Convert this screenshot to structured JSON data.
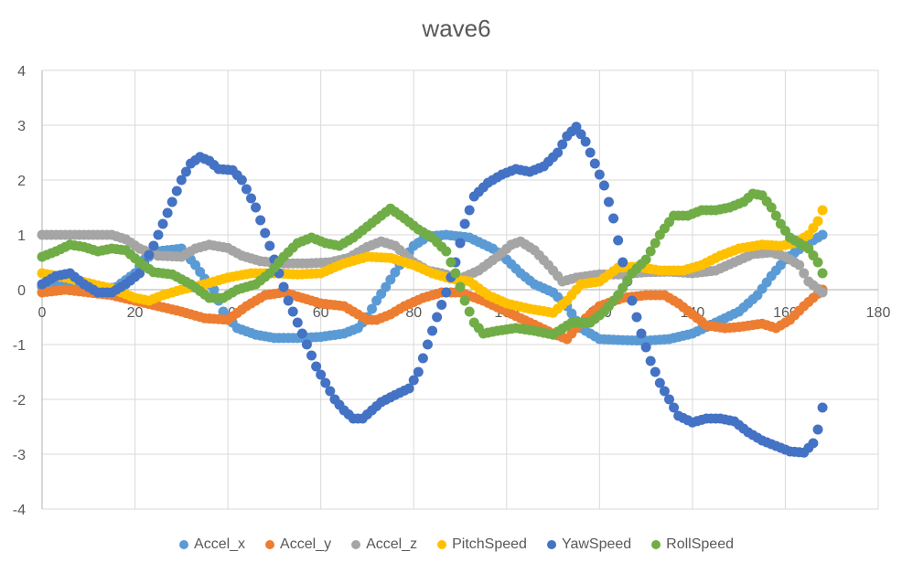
{
  "chart_data": {
    "type": "scatter",
    "title": "wave6",
    "xlabel": "",
    "ylabel": "",
    "xlim": [
      0,
      180
    ],
    "ylim": [
      -4,
      4
    ],
    "x_ticks": [
      0,
      20,
      40,
      60,
      80,
      100,
      120,
      140,
      160,
      180
    ],
    "y_ticks": [
      -4,
      -3,
      -2,
      -1,
      0,
      1,
      2,
      3,
      4
    ],
    "grid": true,
    "legend_position": "bottom",
    "series": [
      {
        "name": "Accel_x",
        "color": "#5B9BD5",
        "points": [
          [
            0,
            0.05
          ],
          [
            5,
            0.15
          ],
          [
            10,
            0.1
          ],
          [
            13,
            0.0
          ],
          [
            16,
            0.05
          ],
          [
            20,
            0.3
          ],
          [
            22,
            0.55
          ],
          [
            25,
            0.7
          ],
          [
            30,
            0.75
          ],
          [
            33,
            0.45
          ],
          [
            35,
            0.2
          ],
          [
            37,
            0.0
          ],
          [
            39,
            -0.4
          ],
          [
            42,
            -0.7
          ],
          [
            46,
            -0.82
          ],
          [
            50,
            -0.88
          ],
          [
            55,
            -0.88
          ],
          [
            60,
            -0.86
          ],
          [
            65,
            -0.8
          ],
          [
            68,
            -0.7
          ],
          [
            70,
            -0.5
          ],
          [
            72,
            -0.2
          ],
          [
            74,
            0.05
          ],
          [
            77,
            0.45
          ],
          [
            80,
            0.8
          ],
          [
            83,
            0.97
          ],
          [
            87,
            1.0
          ],
          [
            92,
            0.95
          ],
          [
            97,
            0.75
          ],
          [
            100,
            0.55
          ],
          [
            103,
            0.3
          ],
          [
            106,
            0.1
          ],
          [
            110,
            -0.05
          ],
          [
            113,
            -0.3
          ],
          [
            116,
            -0.7
          ],
          [
            120,
            -0.9
          ],
          [
            125,
            -0.92
          ],
          [
            130,
            -0.93
          ],
          [
            135,
            -0.9
          ],
          [
            140,
            -0.8
          ],
          [
            145,
            -0.6
          ],
          [
            150,
            -0.4
          ],
          [
            154,
            -0.1
          ],
          [
            157,
            0.25
          ],
          [
            160,
            0.55
          ],
          [
            164,
            0.8
          ],
          [
            168,
            1.0
          ]
        ]
      },
      {
        "name": "Accel_y",
        "color": "#ED7D31",
        "points": [
          [
            0,
            -0.05
          ],
          [
            5,
            0.0
          ],
          [
            10,
            -0.05
          ],
          [
            15,
            -0.1
          ],
          [
            20,
            -0.2
          ],
          [
            25,
            -0.3
          ],
          [
            30,
            -0.4
          ],
          [
            35,
            -0.52
          ],
          [
            40,
            -0.55
          ],
          [
            44,
            -0.3
          ],
          [
            48,
            -0.1
          ],
          [
            52,
            -0.05
          ],
          [
            56,
            -0.15
          ],
          [
            60,
            -0.25
          ],
          [
            65,
            -0.3
          ],
          [
            68,
            -0.45
          ],
          [
            70,
            -0.55
          ],
          [
            72,
            -0.55
          ],
          [
            75,
            -0.45
          ],
          [
            78,
            -0.3
          ],
          [
            82,
            -0.15
          ],
          [
            86,
            -0.05
          ],
          [
            90,
            -0.05
          ],
          [
            95,
            -0.2
          ],
          [
            100,
            -0.4
          ],
          [
            105,
            -0.6
          ],
          [
            110,
            -0.8
          ],
          [
            113,
            -0.9
          ],
          [
            116,
            -0.6
          ],
          [
            120,
            -0.3
          ],
          [
            125,
            -0.15
          ],
          [
            130,
            -0.1
          ],
          [
            134,
            -0.1
          ],
          [
            137,
            -0.25
          ],
          [
            140,
            -0.45
          ],
          [
            143,
            -0.65
          ],
          [
            147,
            -0.7
          ],
          [
            150,
            -0.68
          ],
          [
            155,
            -0.62
          ],
          [
            158,
            -0.7
          ],
          [
            161,
            -0.55
          ],
          [
            164,
            -0.3
          ],
          [
            166,
            -0.15
          ],
          [
            168,
            0.0
          ]
        ]
      },
      {
        "name": "Accel_z",
        "color": "#A5A5A5",
        "points": [
          [
            0,
            1.0
          ],
          [
            5,
            1.0
          ],
          [
            10,
            1.0
          ],
          [
            15,
            1.0
          ],
          [
            18,
            0.92
          ],
          [
            21,
            0.75
          ],
          [
            25,
            0.62
          ],
          [
            30,
            0.6
          ],
          [
            33,
            0.75
          ],
          [
            36,
            0.82
          ],
          [
            40,
            0.76
          ],
          [
            43,
            0.62
          ],
          [
            47,
            0.52
          ],
          [
            52,
            0.48
          ],
          [
            57,
            0.48
          ],
          [
            62,
            0.5
          ],
          [
            66,
            0.58
          ],
          [
            70,
            0.78
          ],
          [
            73,
            0.88
          ],
          [
            76,
            0.8
          ],
          [
            80,
            0.5
          ],
          [
            83,
            0.35
          ],
          [
            86,
            0.3
          ],
          [
            90,
            0.2
          ],
          [
            94,
            0.35
          ],
          [
            98,
            0.6
          ],
          [
            101,
            0.82
          ],
          [
            103,
            0.88
          ],
          [
            106,
            0.72
          ],
          [
            109,
            0.45
          ],
          [
            112,
            0.15
          ],
          [
            115,
            0.22
          ],
          [
            120,
            0.28
          ],
          [
            125,
            0.28
          ],
          [
            130,
            0.32
          ],
          [
            135,
            0.33
          ],
          [
            140,
            0.3
          ],
          [
            145,
            0.35
          ],
          [
            149,
            0.5
          ],
          [
            153,
            0.65
          ],
          [
            157,
            0.68
          ],
          [
            160,
            0.6
          ],
          [
            163,
            0.45
          ],
          [
            165,
            0.15
          ],
          [
            168,
            -0.05
          ]
        ]
      },
      {
        "name": "PitchSpeed",
        "color": "#FFC000",
        "points": [
          [
            0,
            0.3
          ],
          [
            5,
            0.22
          ],
          [
            10,
            0.12
          ],
          [
            15,
            0.02
          ],
          [
            20,
            -0.15
          ],
          [
            23,
            -0.2
          ],
          [
            26,
            -0.1
          ],
          [
            30,
            0.0
          ],
          [
            35,
            0.1
          ],
          [
            40,
            0.22
          ],
          [
            45,
            0.3
          ],
          [
            50,
            0.3
          ],
          [
            55,
            0.28
          ],
          [
            60,
            0.3
          ],
          [
            65,
            0.48
          ],
          [
            70,
            0.6
          ],
          [
            75,
            0.58
          ],
          [
            80,
            0.45
          ],
          [
            84,
            0.3
          ],
          [
            88,
            0.2
          ],
          [
            92,
            0.15
          ],
          [
            96,
            -0.1
          ],
          [
            100,
            -0.25
          ],
          [
            105,
            -0.35
          ],
          [
            110,
            -0.42
          ],
          [
            113,
            -0.2
          ],
          [
            116,
            0.1
          ],
          [
            120,
            0.15
          ],
          [
            124,
            0.4
          ],
          [
            128,
            0.42
          ],
          [
            133,
            0.35
          ],
          [
            138,
            0.35
          ],
          [
            142,
            0.45
          ],
          [
            146,
            0.62
          ],
          [
            150,
            0.75
          ],
          [
            155,
            0.82
          ],
          [
            159,
            0.8
          ],
          [
            162,
            0.85
          ],
          [
            165,
            1.0
          ],
          [
            167,
            1.25
          ],
          [
            168,
            1.45
          ]
        ]
      },
      {
        "name": "YawSpeed",
        "color": "#4472C4",
        "points": [
          [
            0,
            0.1
          ],
          [
            3,
            0.25
          ],
          [
            6,
            0.3
          ],
          [
            9,
            0.1
          ],
          [
            12,
            -0.05
          ],
          [
            15,
            -0.05
          ],
          [
            18,
            0.1
          ],
          [
            21,
            0.3
          ],
          [
            24,
            0.8
          ],
          [
            27,
            1.4
          ],
          [
            30,
            2.0
          ],
          [
            32,
            2.3
          ],
          [
            34,
            2.42
          ],
          [
            36,
            2.35
          ],
          [
            38,
            2.2
          ],
          [
            41,
            2.18
          ],
          [
            43,
            2.0
          ],
          [
            46,
            1.5
          ],
          [
            49,
            0.8
          ],
          [
            51,
            0.3
          ],
          [
            53,
            -0.2
          ],
          [
            55,
            -0.6
          ],
          [
            57,
            -1.0
          ],
          [
            59,
            -1.4
          ],
          [
            61,
            -1.7
          ],
          [
            63,
            -2.0
          ],
          [
            65,
            -2.2
          ],
          [
            67,
            -2.35
          ],
          [
            69,
            -2.35
          ],
          [
            71,
            -2.2
          ],
          [
            73,
            -2.05
          ],
          [
            76,
            -1.92
          ],
          [
            79,
            -1.8
          ],
          [
            81,
            -1.5
          ],
          [
            83,
            -1.0
          ],
          [
            85,
            -0.5
          ],
          [
            87,
            -0.05
          ],
          [
            89,
            0.5
          ],
          [
            91,
            1.2
          ],
          [
            93,
            1.7
          ],
          [
            96,
            1.95
          ],
          [
            99,
            2.1
          ],
          [
            102,
            2.2
          ],
          [
            105,
            2.15
          ],
          [
            108,
            2.25
          ],
          [
            111,
            2.5
          ],
          [
            113,
            2.8
          ],
          [
            115,
            2.97
          ],
          [
            117,
            2.7
          ],
          [
            119,
            2.3
          ],
          [
            121,
            1.9
          ],
          [
            123,
            1.3
          ],
          [
            125,
            0.5
          ],
          [
            127,
            -0.2
          ],
          [
            129,
            -0.8
          ],
          [
            131,
            -1.3
          ],
          [
            133,
            -1.7
          ],
          [
            135,
            -2.0
          ],
          [
            137,
            -2.3
          ],
          [
            140,
            -2.42
          ],
          [
            143,
            -2.35
          ],
          [
            146,
            -2.35
          ],
          [
            149,
            -2.4
          ],
          [
            152,
            -2.6
          ],
          [
            155,
            -2.75
          ],
          [
            158,
            -2.85
          ],
          [
            161,
            -2.95
          ],
          [
            164,
            -2.97
          ],
          [
            166,
            -2.8
          ],
          [
            167,
            -2.55
          ],
          [
            168,
            -2.15
          ]
        ]
      },
      {
        "name": "RollSpeed",
        "color": "#70AD47",
        "points": [
          [
            0,
            0.6
          ],
          [
            3,
            0.7
          ],
          [
            6,
            0.82
          ],
          [
            9,
            0.78
          ],
          [
            12,
            0.7
          ],
          [
            15,
            0.75
          ],
          [
            18,
            0.72
          ],
          [
            21,
            0.5
          ],
          [
            24,
            0.32
          ],
          [
            28,
            0.28
          ],
          [
            32,
            0.1
          ],
          [
            36,
            -0.15
          ],
          [
            39,
            -0.15
          ],
          [
            42,
            0.0
          ],
          [
            46,
            0.1
          ],
          [
            49,
            0.3
          ],
          [
            52,
            0.6
          ],
          [
            55,
            0.85
          ],
          [
            58,
            0.95
          ],
          [
            61,
            0.85
          ],
          [
            64,
            0.8
          ],
          [
            67,
            0.95
          ],
          [
            70,
            1.15
          ],
          [
            73,
            1.35
          ],
          [
            75,
            1.48
          ],
          [
            78,
            1.3
          ],
          [
            81,
            1.1
          ],
          [
            84,
            0.95
          ],
          [
            87,
            0.7
          ],
          [
            89,
            0.3
          ],
          [
            91,
            -0.2
          ],
          [
            93,
            -0.6
          ],
          [
            95,
            -0.8
          ],
          [
            98,
            -0.75
          ],
          [
            102,
            -0.7
          ],
          [
            106,
            -0.75
          ],
          [
            110,
            -0.82
          ],
          [
            114,
            -0.6
          ],
          [
            118,
            -0.6
          ],
          [
            121,
            -0.4
          ],
          [
            124,
            -0.1
          ],
          [
            127,
            0.3
          ],
          [
            130,
            0.55
          ],
          [
            133,
            1.0
          ],
          [
            136,
            1.35
          ],
          [
            139,
            1.35
          ],
          [
            142,
            1.45
          ],
          [
            145,
            1.45
          ],
          [
            148,
            1.5
          ],
          [
            151,
            1.6
          ],
          [
            153,
            1.75
          ],
          [
            155,
            1.72
          ],
          [
            157,
            1.5
          ],
          [
            159,
            1.2
          ],
          [
            161,
            0.95
          ],
          [
            163,
            0.85
          ],
          [
            165,
            0.75
          ],
          [
            167,
            0.5
          ],
          [
            168,
            0.3
          ]
        ]
      }
    ]
  }
}
